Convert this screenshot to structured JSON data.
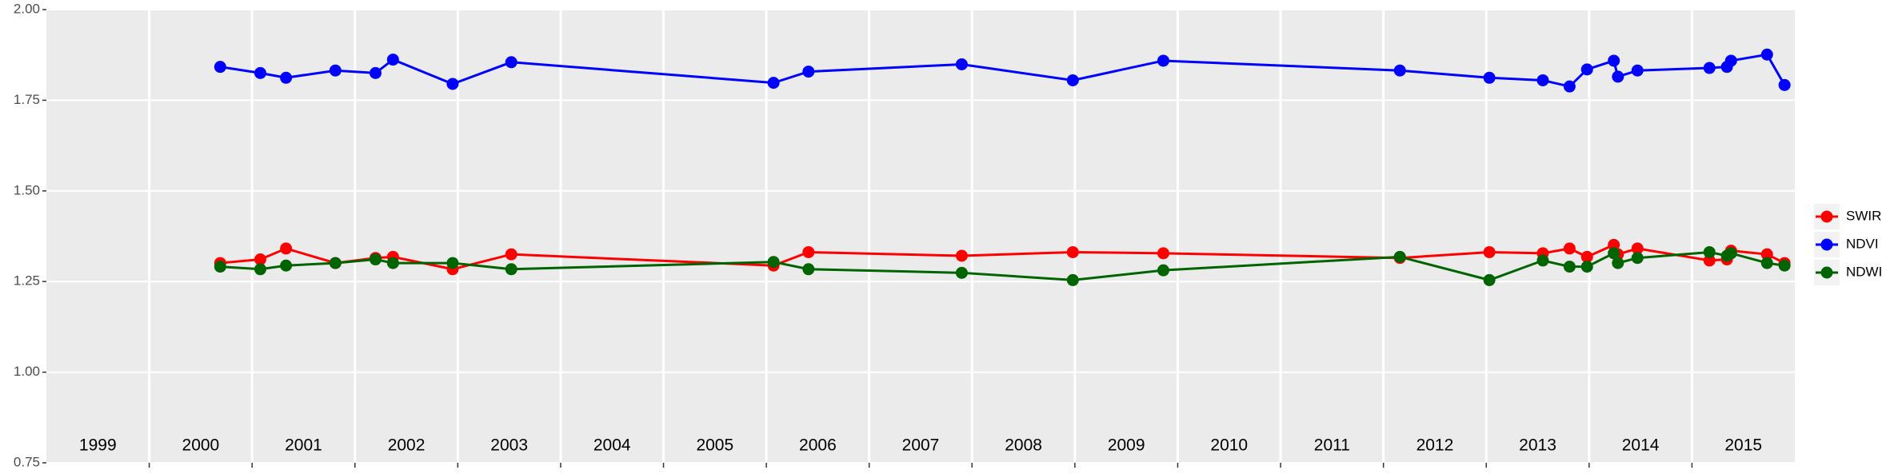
{
  "chart_data": {
    "type": "line",
    "x": [
      2000.69,
      2001.08,
      2001.33,
      2001.81,
      2002.2,
      2002.37,
      2002.95,
      2003.52,
      2006.07,
      2006.41,
      2007.9,
      2008.98,
      2009.86,
      2012.16,
      2013.03,
      2013.55,
      2013.81,
      2013.98,
      2014.24,
      2014.28,
      2014.47,
      2015.17,
      2015.34,
      2015.38,
      2015.73,
      2015.9
    ],
    "series": [
      {
        "name": "SWIR",
        "color": "#ff0000",
        "values": [
          1.301,
          1.311,
          1.341,
          1.301,
          1.315,
          1.318,
          1.284,
          1.325,
          1.294,
          1.331,
          1.321,
          1.331,
          1.328,
          1.315,
          1.331,
          1.328,
          1.341,
          1.318,
          1.351,
          1.325,
          1.341,
          1.308,
          1.311,
          1.335,
          1.325,
          1.301
        ]
      },
      {
        "name": "NDVI",
        "color": "#0000ff",
        "values": [
          1.842,
          1.825,
          1.812,
          1.832,
          1.825,
          1.862,
          1.795,
          1.855,
          1.798,
          1.829,
          1.849,
          1.805,
          1.859,
          1.832,
          1.812,
          1.805,
          1.788,
          1.835,
          1.859,
          1.815,
          1.832,
          1.839,
          1.842,
          1.859,
          1.876,
          1.792
        ]
      },
      {
        "name": "NDWI",
        "color": "#006400",
        "values": [
          1.291,
          1.284,
          1.294,
          1.301,
          1.311,
          1.301,
          1.301,
          1.284,
          1.304,
          1.284,
          1.274,
          1.254,
          1.281,
          1.318,
          1.254,
          1.308,
          1.291,
          1.291,
          1.328,
          1.301,
          1.315,
          1.331,
          1.321,
          1.328,
          1.301,
          1.294
        ]
      }
    ],
    "xlim": [
      1999,
      2016
    ],
    "xticks": [
      2000,
      2001,
      2002,
      2003,
      2004,
      2005,
      2006,
      2007,
      2008,
      2009,
      2010,
      2011,
      2012,
      2013,
      2014,
      2015
    ],
    "ylim": [
      0.75,
      2.0
    ],
    "yticks": [
      {
        "value": 0.75,
        "label": "0.75"
      },
      {
        "value": 1.0,
        "label": "1.00"
      },
      {
        "value": 1.25,
        "label": "1.25"
      },
      {
        "value": 1.5,
        "label": "1.50"
      },
      {
        "value": 1.75,
        "label": "1.75"
      },
      {
        "value": 2.0,
        "label": "2.00"
      }
    ],
    "year_labels": [
      "1999",
      "2000",
      "2001",
      "2002",
      "2003",
      "2004",
      "2005",
      "2006",
      "2007",
      "2008",
      "2009",
      "2010",
      "2011",
      "2012",
      "2013",
      "2014",
      "2015"
    ],
    "grid": true,
    "legend": "right"
  }
}
